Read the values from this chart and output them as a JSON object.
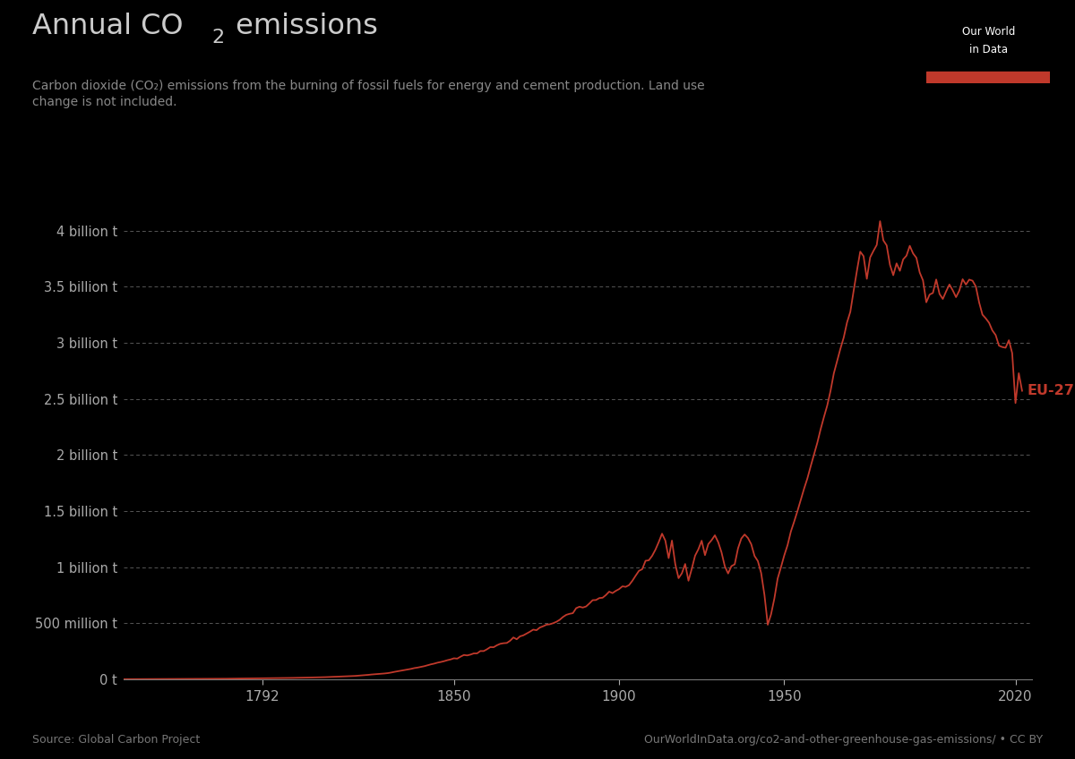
{
  "title_part1": "Annual CO",
  "title_sub": "2",
  "title_part2": " emissions",
  "subtitle": "Carbon dioxide (CO₂) emissions from the burning of fossil fuels for energy and cement production. Land use\nchange is not included.",
  "source_left": "Source: Global Carbon Project",
  "source_right": "OurWorldInData.org/co2-and-other-greenhouse-gas-emissions/ • CC BY",
  "label": "EU-27",
  "line_color": "#C0392B",
  "background_color": "#000000",
  "text_color": "#aaaaaa",
  "title_color": "#cccccc",
  "subtitle_color": "#888888",
  "grid_color": "#555555",
  "owid_box_color": "#1a3a5c",
  "owid_red": "#c0392b",
  "xlim": [
    1750,
    2025
  ],
  "ylim": [
    0,
    4600000000.0
  ],
  "yticks": [
    0,
    500000000.0,
    1000000000.0,
    1500000000.0,
    2000000000.0,
    2500000000.0,
    3000000000.0,
    3500000000.0,
    4000000000.0
  ],
  "ytick_labels": [
    "0 t",
    "500 million t",
    "1 billion t",
    "1.5 billion t",
    "2 billion t",
    "2.5 billion t",
    "3 billion t",
    "3.5 billion t",
    "4 billion t"
  ],
  "xticks": [
    1792,
    1850,
    1900,
    1950,
    2020
  ],
  "figsize": [
    12.0,
    8.48
  ]
}
